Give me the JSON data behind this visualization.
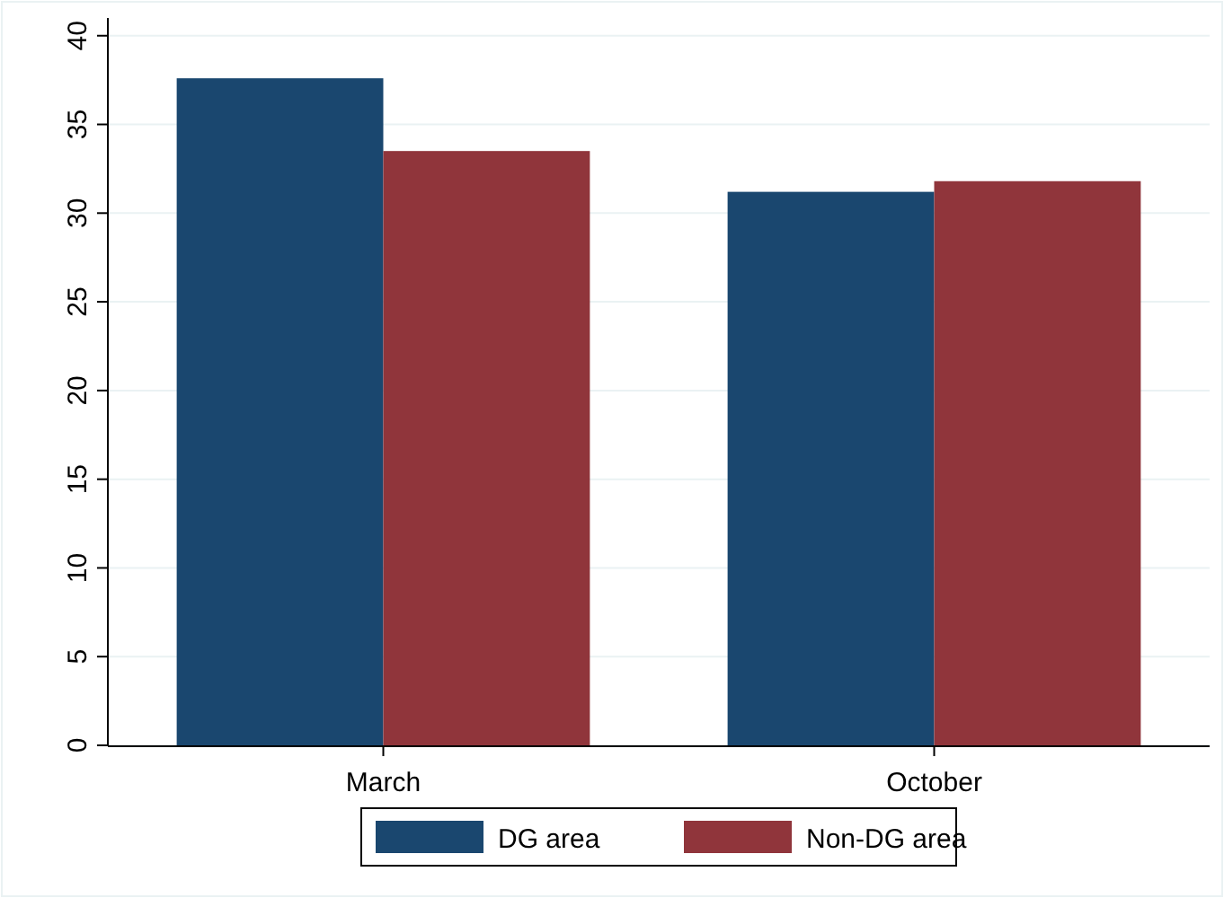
{
  "chart_data": {
    "type": "bar",
    "categories": [
      "March",
      "October"
    ],
    "series": [
      {
        "name": "DG area",
        "color": "#1a476f",
        "values": [
          37.6,
          31.2
        ]
      },
      {
        "name": "Non-DG area",
        "color": "#90353b",
        "values": [
          33.5,
          31.8
        ]
      }
    ],
    "ylim": [
      0,
      41
    ],
    "yticks": [
      0,
      5,
      10,
      15,
      20,
      25,
      30,
      35,
      40
    ],
    "grid": "y",
    "legend": "bottom"
  }
}
